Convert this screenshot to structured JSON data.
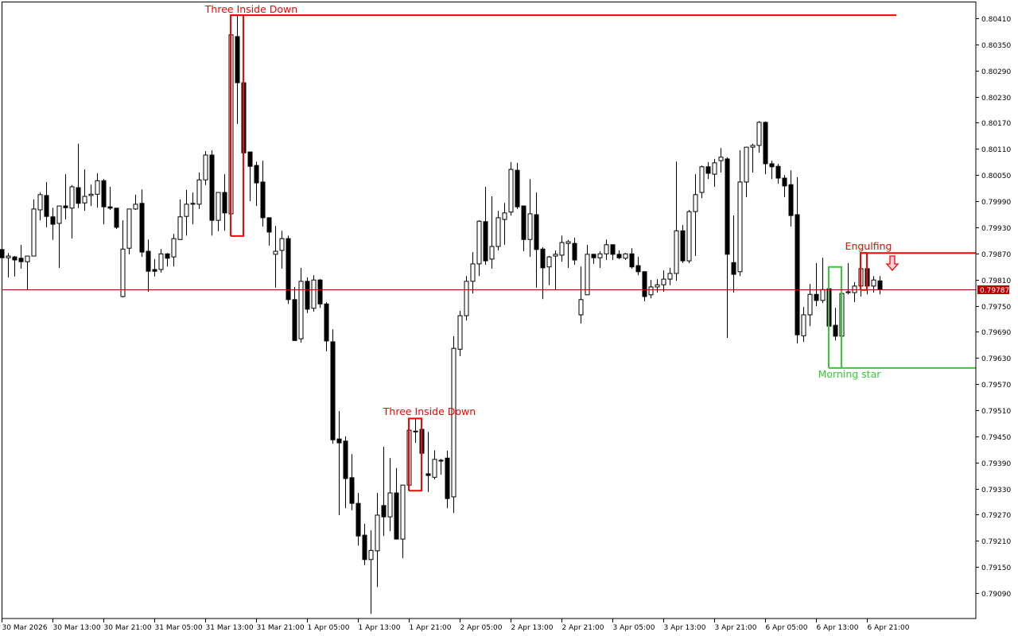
{
  "chart_data": {
    "type": "candlestick",
    "timeframe_labels": [
      "30 Mar 2026",
      "30 Mar 13:00",
      "30 Mar 21:00",
      "31 Mar 05:00",
      "31 Mar 13:00",
      "31 Mar 21:00",
      "1 Apr 05:00",
      "1 Apr 13:00",
      "1 Apr 21:00",
      "2 Apr 05:00",
      "2 Apr 13:00",
      "2 Apr 21:00",
      "3 Apr 05:00",
      "3 Apr 13:00",
      "3 Apr 21:00",
      "6 Apr 05:00",
      "6 Apr 13:00",
      "6 Apr 21:00"
    ],
    "x_label_every_bars": 8,
    "price_ticks": [
      "0.80410",
      "0.80350",
      "0.80290",
      "0.80230",
      "0.80170",
      "0.80110",
      "0.80050",
      "0.79990",
      "0.79930",
      "0.79870",
      "0.79810",
      "0.79750",
      "0.79690",
      "0.79630",
      "0.79570",
      "0.79510",
      "0.79450",
      "0.79390",
      "0.79330",
      "0.79270",
      "0.79210",
      "0.79150",
      "0.79090"
    ],
    "ylim": [
      0.7903,
      0.8046
    ],
    "grid": false,
    "current_price": "0.79787",
    "ohlc_fields": [
      "open",
      "high",
      "low",
      "close"
    ],
    "candles": [
      [
        0.79879,
        0.79886,
        0.79831,
        0.7986
      ],
      [
        0.7986,
        0.79871,
        0.79815,
        0.79864
      ],
      [
        0.79862,
        0.79864,
        0.79817,
        0.79855
      ],
      [
        0.79859,
        0.7989,
        0.79835,
        0.79851
      ],
      [
        0.79851,
        0.79864,
        0.79786,
        0.79864
      ],
      [
        0.79864,
        0.79994,
        0.79864,
        0.79972
      ],
      [
        0.7997,
        0.8001,
        0.79946,
        0.80005
      ],
      [
        0.80003,
        0.80034,
        0.7993,
        0.79955
      ],
      [
        0.79954,
        0.79975,
        0.79901,
        0.79937
      ],
      [
        0.79939,
        0.79979,
        0.79837,
        0.79979
      ],
      [
        0.79979,
        0.80052,
        0.79948,
        0.79975
      ],
      [
        0.79974,
        0.80027,
        0.79904,
        0.80023
      ],
      [
        0.80021,
        0.80122,
        0.79974,
        0.79985
      ],
      [
        0.79986,
        0.80063,
        0.79968,
        0.80001
      ],
      [
        0.80003,
        0.80028,
        0.79979,
        0.80006
      ],
      [
        0.80006,
        0.80054,
        0.79975,
        0.80037
      ],
      [
        0.80037,
        0.80041,
        0.79937,
        0.79977
      ],
      [
        0.79977,
        0.80023,
        0.7997,
        0.79974
      ],
      [
        0.79974,
        0.79974,
        0.79926,
        0.7993
      ],
      [
        0.79771,
        0.79946,
        0.79769,
        0.7988
      ],
      [
        0.79882,
        0.79972,
        0.79868,
        0.79972
      ],
      [
        0.79972,
        0.80005,
        0.7997,
        0.79983
      ],
      [
        0.79985,
        0.80017,
        0.79862,
        0.79873
      ],
      [
        0.79875,
        0.79902,
        0.79782,
        0.79829
      ],
      [
        0.79833,
        0.79857,
        0.79817,
        0.79829
      ],
      [
        0.79833,
        0.7988,
        0.79826,
        0.79869
      ],
      [
        0.79869,
        0.79871,
        0.7984,
        0.79859
      ],
      [
        0.79862,
        0.79915,
        0.7984,
        0.79904
      ],
      [
        0.79902,
        0.79994,
        0.79901,
        0.79954
      ],
      [
        0.79955,
        0.80016,
        0.79911,
        0.79983
      ],
      [
        0.79983,
        0.8001,
        0.79937,
        0.79985
      ],
      [
        0.79983,
        0.80056,
        0.79972,
        0.80039
      ],
      [
        0.80039,
        0.80105,
        0.80027,
        0.80096
      ],
      [
        0.80096,
        0.80107,
        0.79911,
        0.79946
      ],
      [
        0.79946,
        0.8001,
        0.79921,
        0.8001
      ],
      [
        0.8001,
        0.80052,
        0.79922,
        0.79963
      ],
      [
        0.79961,
        0.80375,
        0.7991,
        0.80372
      ],
      [
        0.80368,
        0.80415,
        0.80167,
        0.80262
      ],
      [
        0.80262,
        0.80339,
        0.80028,
        0.80101
      ],
      [
        0.80103,
        0.80103,
        0.7999,
        0.8007
      ],
      [
        0.80072,
        0.80081,
        0.79979,
        0.80032
      ],
      [
        0.80034,
        0.80083,
        0.79932,
        0.79952
      ],
      [
        0.79952,
        0.79952,
        0.79888,
        0.79919
      ],
      [
        0.79868,
        0.79933,
        0.79791,
        0.79875
      ],
      [
        0.79877,
        0.79922,
        0.79835,
        0.79904
      ],
      [
        0.79904,
        0.79911,
        0.79754,
        0.79764
      ],
      [
        0.79764,
        0.79793,
        0.79669,
        0.7967
      ],
      [
        0.79674,
        0.79837,
        0.79665,
        0.79806
      ],
      [
        0.79806,
        0.79815,
        0.79733,
        0.79742
      ],
      [
        0.79744,
        0.7982,
        0.79736,
        0.79809
      ],
      [
        0.79809,
        0.79811,
        0.79745,
        0.79754
      ],
      [
        0.79754,
        0.79758,
        0.79645,
        0.79669
      ],
      [
        0.79667,
        0.79696,
        0.79433,
        0.79442
      ],
      [
        0.79444,
        0.79508,
        0.79269,
        0.79435
      ],
      [
        0.79439,
        0.7945,
        0.79285,
        0.79353
      ],
      [
        0.79355,
        0.79409,
        0.7928,
        0.79296
      ],
      [
        0.79296,
        0.7932,
        0.79199,
        0.79221
      ],
      [
        0.79223,
        0.79249,
        0.79154,
        0.79167
      ],
      [
        0.79167,
        0.79234,
        0.79042,
        0.79188
      ],
      [
        0.79187,
        0.7932,
        0.79104,
        0.79269
      ],
      [
        0.79291,
        0.79426,
        0.79221,
        0.79265
      ],
      [
        0.79265,
        0.794,
        0.79232,
        0.7932
      ],
      [
        0.7932,
        0.79377,
        0.79214,
        0.79214
      ],
      [
        0.79214,
        0.79338,
        0.7917,
        0.79338
      ],
      [
        0.79338,
        0.79468,
        0.79325,
        0.79464
      ],
      [
        0.79461,
        0.79491,
        0.79435,
        0.79462
      ],
      [
        0.79466,
        0.79468,
        0.79404,
        0.79411
      ],
      [
        0.79364,
        0.7946,
        0.79322,
        0.7936
      ],
      [
        0.79356,
        0.79418,
        0.79351,
        0.79397
      ],
      [
        0.79394,
        0.79398,
        0.79362,
        0.79395
      ],
      [
        0.794,
        0.79417,
        0.79285,
        0.79307
      ],
      [
        0.79311,
        0.7968,
        0.79274,
        0.79652
      ],
      [
        0.7965,
        0.79738,
        0.79634,
        0.79727
      ],
      [
        0.79727,
        0.79818,
        0.79716,
        0.79806
      ],
      [
        0.79806,
        0.79873,
        0.79778,
        0.79846
      ],
      [
        0.79846,
        0.79946,
        0.79818,
        0.79944
      ],
      [
        0.79943,
        0.80023,
        0.79844,
        0.79853
      ],
      [
        0.79857,
        0.80001,
        0.79835,
        0.79886
      ],
      [
        0.79886,
        0.79968,
        0.79877,
        0.79952
      ],
      [
        0.79948,
        0.79986,
        0.7989,
        0.79963
      ],
      [
        0.79965,
        0.8008,
        0.79957,
        0.80063
      ],
      [
        0.80061,
        0.80078,
        0.79972,
        0.79977
      ],
      [
        0.79979,
        0.79979,
        0.79875,
        0.79902
      ],
      [
        0.79902,
        0.80041,
        0.79862,
        0.79961
      ],
      [
        0.79959,
        0.8001,
        0.79791,
        0.79879
      ],
      [
        0.7988,
        0.79884,
        0.79765,
        0.79837
      ],
      [
        0.79839,
        0.79864,
        0.79797,
        0.79862
      ],
      [
        0.79864,
        0.79877,
        0.79787,
        0.79868
      ],
      [
        0.79866,
        0.79911,
        0.79851,
        0.79895
      ],
      [
        0.79893,
        0.79901,
        0.79837,
        0.79897
      ],
      [
        0.79893,
        0.79906,
        0.79844,
        0.79855
      ],
      [
        0.79729,
        0.7984,
        0.79709,
        0.79764
      ],
      [
        0.79775,
        0.7989,
        0.79775,
        0.79868
      ],
      [
        0.79868,
        0.79869,
        0.79846,
        0.7986
      ],
      [
        0.7986,
        0.79875,
        0.79837,
        0.79869
      ],
      [
        0.79869,
        0.79902,
        0.79855,
        0.7989
      ],
      [
        0.7989,
        0.79891,
        0.79855,
        0.79868
      ],
      [
        0.79868,
        0.79877,
        0.79857,
        0.7986
      ],
      [
        0.79859,
        0.79871,
        0.79855,
        0.79869
      ],
      [
        0.79869,
        0.79882,
        0.79835,
        0.79839
      ],
      [
        0.79842,
        0.79862,
        0.7982,
        0.79828
      ],
      [
        0.79828,
        0.79829,
        0.7976,
        0.79771
      ],
      [
        0.79775,
        0.79809,
        0.79767,
        0.79793
      ],
      [
        0.79793,
        0.79811,
        0.7978,
        0.79798
      ],
      [
        0.79798,
        0.79831,
        0.79782,
        0.79811
      ],
      [
        0.79811,
        0.79837,
        0.79797,
        0.79824
      ],
      [
        0.79824,
        0.80081,
        0.79807,
        0.79922
      ],
      [
        0.79922,
        0.79935,
        0.79848,
        0.79853
      ],
      [
        0.79853,
        0.7997,
        0.79848,
        0.79966
      ],
      [
        0.79966,
        0.80052,
        0.79864,
        0.80005
      ],
      [
        0.8001,
        0.80072,
        0.79997,
        0.80069
      ],
      [
        0.80069,
        0.8008,
        0.80041,
        0.80054
      ],
      [
        0.80052,
        0.80087,
        0.80023,
        0.80078
      ],
      [
        0.80083,
        0.80112,
        0.80056,
        0.80091
      ],
      [
        0.80087,
        0.80091,
        0.79676,
        0.79868
      ],
      [
        0.79849,
        0.79957,
        0.7978,
        0.79822
      ],
      [
        0.79828,
        0.80107,
        0.79818,
        0.80034
      ],
      [
        0.80034,
        0.80114,
        0.79999,
        0.80114
      ],
      [
        0.80114,
        0.80122,
        0.80056,
        0.80118
      ],
      [
        0.80118,
        0.80174,
        0.80101,
        0.80171
      ],
      [
        0.80171,
        0.80173,
        0.80052,
        0.80076
      ],
      [
        0.80076,
        0.80083,
        0.80041,
        0.80069
      ],
      [
        0.8007,
        0.80076,
        0.8003,
        0.80043
      ],
      [
        0.80043,
        0.8005,
        0.79999,
        0.80025
      ],
      [
        0.80028,
        0.80061,
        0.79932,
        0.79957
      ],
      [
        0.79959,
        0.80045,
        0.79663,
        0.79683
      ],
      [
        0.79681,
        0.79747,
        0.79667,
        0.79729
      ],
      [
        0.79729,
        0.798,
        0.79703,
        0.79776
      ],
      [
        0.79776,
        0.79848,
        0.79749,
        0.79762
      ],
      [
        0.79762,
        0.7986,
        0.79756,
        0.79787
      ],
      [
        0.79789,
        0.79789,
        0.79698,
        0.79703
      ],
      [
        0.79705,
        0.79745,
        0.7967,
        0.7968
      ],
      [
        0.7968,
        0.79787,
        0.79607,
        0.79778
      ],
      [
        0.7978,
        0.79848,
        0.79776,
        0.79782
      ],
      [
        0.7978,
        0.79804,
        0.79758,
        0.79795
      ],
      [
        0.79795,
        0.79871,
        0.79771,
        0.79835
      ],
      [
        0.79835,
        0.79851,
        0.79776,
        0.79795
      ],
      [
        0.79795,
        0.79818,
        0.7978,
        0.79809
      ],
      [
        0.79807,
        0.79818,
        0.79776,
        0.79787
      ]
    ],
    "patterns": [
      {
        "label": "Three Inside Down",
        "color": "#ff0000",
        "start_bar": 36,
        "end_bar": 38,
        "top": 0.80417,
        "bottom": 0.7991,
        "level": 0.80417
      },
      {
        "label": "Three Inside Down",
        "color": "#ff0000",
        "start_bar": 64,
        "end_bar": 66,
        "top": 0.79491,
        "bottom": 0.79325
      },
      {
        "label": "Engulfing",
        "color": "#ff0000",
        "start_bar": 135,
        "end_bar": 136,
        "top": 0.79871,
        "bottom": 0.79786,
        "level": 0.79871,
        "signal": "sell-arrow"
      },
      {
        "label": "Morning star",
        "color": "#33cc33",
        "start_bar": 130,
        "end_bar": 132,
        "top": 0.79839,
        "bottom": 0.79607,
        "level": 0.79607
      }
    ],
    "colors": {
      "bull_body": "#ffffff",
      "bear_body": "#000000",
      "outline": "#000000",
      "price_line": "#b00000",
      "price_tag": "#c00000"
    }
  }
}
